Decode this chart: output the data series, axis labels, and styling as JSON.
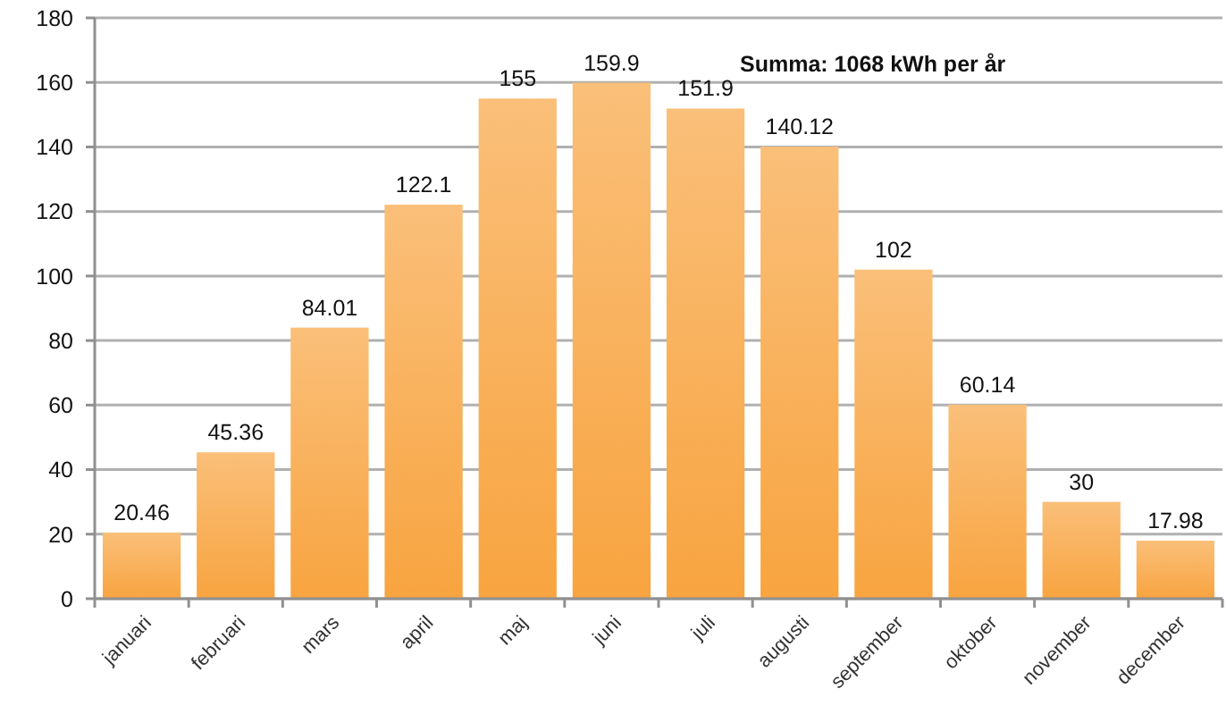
{
  "chart_data": {
    "type": "bar",
    "categories": [
      "januari",
      "februari",
      "mars",
      "april",
      "maj",
      "juni",
      "juli",
      "augusti",
      "september",
      "oktober",
      "november",
      "december"
    ],
    "values": [
      20.46,
      45.36,
      84.01,
      122.1,
      155,
      159.9,
      151.9,
      140.12,
      102,
      60.14,
      30,
      17.98
    ],
    "color": "#f8a440",
    "ylim": [
      0,
      180
    ],
    "yticks": [
      0,
      20,
      40,
      60,
      80,
      100,
      120,
      140,
      160,
      180
    ],
    "grid": "y",
    "data_labels": true,
    "annotations": [
      "Summa: 1068 kWh per år"
    ]
  }
}
